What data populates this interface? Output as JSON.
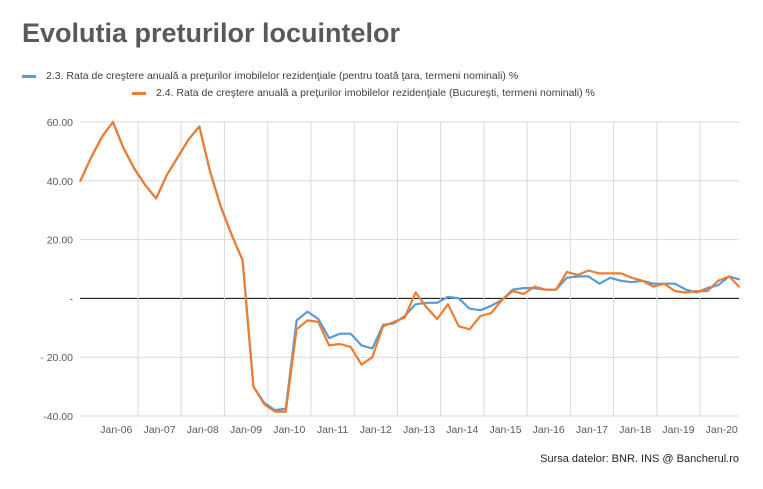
{
  "chart_data": {
    "type": "line",
    "title": "Evolutia preturilor locuintelor",
    "xlabel": "",
    "ylabel": "",
    "ylim": [
      -40,
      60
    ],
    "yticks": [
      60,
      40,
      20,
      0,
      -20,
      -40
    ],
    "ytick_labels": [
      "60.00",
      "40.00",
      "20.00",
      "-",
      "- 20.00",
      "-40.00"
    ],
    "x_tick_labels": [
      "Jan-06",
      "Jan-07",
      "Jan-08",
      "Jan-09",
      "Jan-10",
      "Jan-11",
      "Jan-12",
      "Jan-13",
      "Jan-14",
      "Jan-15",
      "Jan-16",
      "Jan-17",
      "Jan-18",
      "Jan-19",
      "Jan-20"
    ],
    "x_tick_values": [
      2006,
      2007,
      2008,
      2009,
      2010,
      2011,
      2012,
      2013,
      2014,
      2015,
      2016,
      2017,
      2018,
      2019,
      2020
    ],
    "xlim": [
      2005.16,
      2020.4
    ],
    "grid": true,
    "legend_position": "top",
    "series": [
      {
        "name": "2.3. Rata de creştere anuală a preţurilor imobilelor rezidenţiale  (pentru toată ţara, termeni nominali) %",
        "color": "#5B9BD5",
        "x": [
          2005.17,
          2005.42,
          2005.67,
          2005.92,
          2006.17,
          2006.42,
          2006.67,
          2006.92,
          2007.17,
          2007.42,
          2007.67,
          2007.92,
          2008.17,
          2008.42,
          2008.67,
          2008.92,
          2009.17,
          2009.42,
          2009.67,
          2009.92,
          2010.17,
          2010.42,
          2010.67,
          2010.92,
          2011.17,
          2011.42,
          2011.67,
          2011.92,
          2012.17,
          2012.42,
          2012.67,
          2012.92,
          2013.17,
          2013.42,
          2013.67,
          2013.92,
          2014.17,
          2014.42,
          2014.67,
          2014.92,
          2015.17,
          2015.42,
          2015.67,
          2015.92,
          2016.17,
          2016.42,
          2016.67,
          2016.92,
          2017.17,
          2017.42,
          2017.67,
          2017.92,
          2018.17,
          2018.42,
          2018.67,
          2018.92,
          2019.17,
          2019.42,
          2019.67,
          2019.92,
          2020.17,
          2020.4
        ],
        "y": [
          40,
          48,
          55,
          60,
          51,
          44,
          38.5,
          34,
          42,
          48,
          54,
          58.5,
          43,
          31,
          21.5,
          13,
          -30,
          -35.5,
          -38,
          -37.5,
          -7.5,
          -4.5,
          -7,
          -13.5,
          -12,
          -12,
          -16,
          -17,
          -9,
          -8.5,
          -6,
          -2,
          -1.5,
          -1.5,
          0.5,
          0,
          -3.5,
          -4,
          -2.5,
          -0.5,
          3,
          3.5,
          3.5,
          3,
          3,
          7,
          7.5,
          7.5,
          5,
          7,
          6,
          5.5,
          6,
          5,
          5,
          5,
          3,
          2,
          3.5,
          4.5,
          7.5,
          6.5
        ]
      },
      {
        "name": "2.4. Rata de creştere anuală a preţurilor imobilelor rezidenţiale  (Bucureşti, termeni nominali) %",
        "color": "#ED7D31",
        "x": [
          2005.17,
          2005.42,
          2005.67,
          2005.92,
          2006.17,
          2006.42,
          2006.67,
          2006.92,
          2007.17,
          2007.42,
          2007.67,
          2007.92,
          2008.17,
          2008.42,
          2008.67,
          2008.92,
          2009.17,
          2009.42,
          2009.67,
          2009.92,
          2010.17,
          2010.42,
          2010.67,
          2010.92,
          2011.17,
          2011.42,
          2011.67,
          2011.92,
          2012.17,
          2012.42,
          2012.67,
          2012.92,
          2013.17,
          2013.42,
          2013.67,
          2013.92,
          2014.17,
          2014.42,
          2014.67,
          2014.92,
          2015.17,
          2015.42,
          2015.67,
          2015.92,
          2016.17,
          2016.42,
          2016.67,
          2016.92,
          2017.17,
          2017.42,
          2017.67,
          2017.92,
          2018.17,
          2018.42,
          2018.67,
          2018.92,
          2019.17,
          2019.42,
          2019.67,
          2019.92,
          2020.17,
          2020.4
        ],
        "y": [
          40,
          48,
          55,
          60,
          51,
          44,
          38.5,
          34,
          42,
          48,
          54,
          58.5,
          43,
          31,
          21.5,
          13,
          -30,
          -36,
          -38.5,
          -38.5,
          -10.5,
          -7.5,
          -8,
          -16,
          -15.5,
          -16.5,
          -22.5,
          -20,
          -9.5,
          -8,
          -6.5,
          2,
          -3,
          -7,
          -2,
          -9.5,
          -10.5,
          -6,
          -5,
          -0.5,
          2.5,
          1.5,
          4,
          3,
          3,
          9,
          8,
          9.5,
          8.5,
          8.5,
          8.5,
          7,
          6,
          4,
          5,
          2.5,
          2,
          2.5,
          2.5,
          6,
          7.5,
          4
        ]
      }
    ]
  },
  "legend": {
    "item1_label": "2.3. Rata de creştere anuală a preţurilor imobilelor rezidenţiale  (pentru toată ţara, termeni nominali) %",
    "item2_label": "2.4. Rata de creştere anuală a preţurilor imobilelor rezidenţiale  (Bucureşti, termeni nominali) %"
  },
  "source_note": "Sursa datelor: BNR. INS @ Bancherul.ro"
}
